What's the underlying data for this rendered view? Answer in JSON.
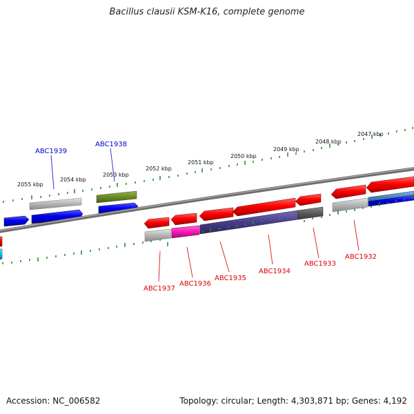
{
  "title": "Bacillus clausii KSM-K16, complete genome",
  "footer": {
    "accession": "Accession: NC_006582",
    "summary": "Topology: circular; Length: 4,303,871 bp; Genes: 4,192"
  },
  "colors": {
    "tick": "#2a8a2a",
    "backbone": "#7a7a7a",
    "label_forward": "#0000cc",
    "label_reverse": "#dd0000",
    "leader_forward": "#1c1cc8",
    "leader_reverse": "#dd1111"
  },
  "scale_labels": [
    "2047 kbp",
    "2048 kbp",
    "2049 kbp",
    "2050 kbp",
    "2051 kbp",
    "2052 kbp",
    "2053 kbp",
    "2054 kbp",
    "2055 kbp"
  ],
  "gene_labels_forward": [
    "ABC1939",
    "ABC1938"
  ],
  "gene_labels_reverse": [
    "ABC1937",
    "ABC1936",
    "ABC1935",
    "ABC1934",
    "ABC1933",
    "ABC1932"
  ]
}
